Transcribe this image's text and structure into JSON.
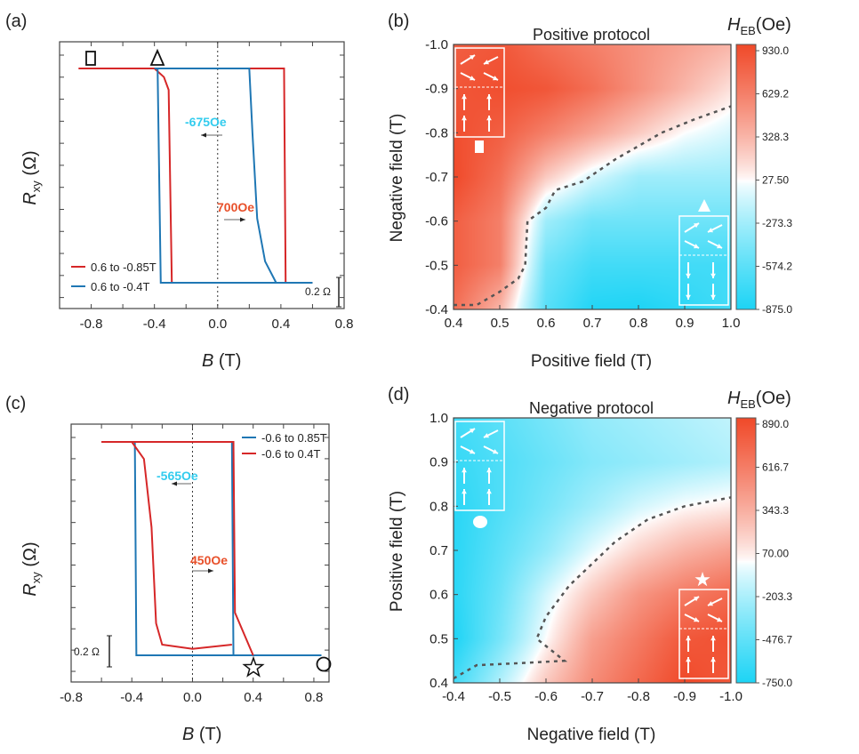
{
  "chart_data": [
    {
      "id": "a",
      "panel_label": "(a)",
      "type": "line",
      "xlabel": "B",
      "xunit": "(T)",
      "ylabel": "R",
      "ylabel_sub": "xy",
      "yunit": "(Ω)",
      "xlim": [
        -1.0,
        0.8
      ],
      "xticks": [
        "-0.8",
        "-0.4",
        "0.0",
        "0.4",
        "0.8"
      ],
      "xtick_values": [
        -0.8,
        -0.4,
        0,
        0.4,
        0.8
      ],
      "series": [
        {
          "name": "0.6 to -0.85T",
          "color": "#d62728",
          "segments": [
            [
              [
                -0.88,
                1
              ],
              [
                0.42,
                1
              ],
              [
                0.43,
                0
              ],
              [
                0.6,
                0
              ]
            ],
            [
              [
                -0.4,
                1
              ],
              [
                -0.34,
                0.96
              ],
              [
                -0.31,
                0.9
              ],
              [
                -0.29,
                0
              ],
              [
                0.6,
                0
              ]
            ]
          ]
        },
        {
          "name": "0.6 to -0.4T",
          "color": "#1f77b4",
          "segments": [
            [
              [
                -0.4,
                1
              ],
              [
                0.2,
                1
              ],
              [
                0.22,
                0.7
              ],
              [
                0.25,
                0.3
              ],
              [
                0.3,
                0.1
              ],
              [
                0.37,
                0
              ]
            ],
            [
              [
                -0.38,
                1
              ],
              [
                -0.36,
                0
              ],
              [
                0.6,
                0
              ]
            ]
          ]
        }
      ],
      "annotations": [
        {
          "text": "-675Oe",
          "color": "#33ccee"
        },
        {
          "text": "700Oe",
          "color": "#e8502a"
        }
      ],
      "scale_bar": "0.2 Ω",
      "markers": [
        "square",
        "triangle"
      ]
    },
    {
      "id": "b",
      "panel_label": "(b)",
      "type": "heatmap",
      "title": "Positive protocol",
      "xlabel": "Positive field (T)",
      "ylabel": "Negative field (T)",
      "xlim": [
        0.4,
        1.0
      ],
      "ylim": [
        -1.0,
        -0.4
      ],
      "xticks": [
        "0.4",
        "0.5",
        "0.6",
        "0.7",
        "0.8",
        "0.9",
        "1.0"
      ],
      "yticks": [
        "-1.0",
        "-0.9",
        "-0.8",
        "-0.7",
        "-0.6",
        "-0.5",
        "-0.4"
      ],
      "colorbar_title": "H",
      "colorbar_sub": "EB",
      "colorbar_unit": "(Oe)",
      "colorbar_ticks": [
        "930.0",
        "629.2",
        "328.3",
        "27.50",
        "-273.3",
        "-574.2",
        "-875.0"
      ],
      "zlim": [
        -875,
        930
      ],
      "grid": [
        [
          800,
          850,
          700,
          600,
          500,
          400,
          300
        ],
        [
          850,
          900,
          850,
          700,
          500,
          300,
          100
        ],
        [
          900,
          800,
          600,
          400,
          200,
          0,
          -100
        ],
        [
          930,
          700,
          200,
          -100,
          -300,
          -300,
          -300
        ],
        [
          800,
          600,
          -300,
          -500,
          -500,
          -500,
          -500
        ],
        [
          800,
          600,
          -500,
          -700,
          -700,
          -700,
          -700
        ],
        [
          700,
          300,
          -600,
          -850,
          -875,
          -800,
          -700
        ]
      ],
      "boundary": [
        [
          0.4,
          -0.41
        ],
        [
          0.45,
          -0.41
        ],
        [
          0.5,
          -0.44
        ],
        [
          0.54,
          -0.47
        ],
        [
          0.555,
          -0.5
        ],
        [
          0.56,
          -0.6
        ],
        [
          0.6,
          -0.63
        ],
        [
          0.62,
          -0.67
        ],
        [
          0.68,
          -0.69
        ],
        [
          0.75,
          -0.74
        ],
        [
          0.85,
          -0.8
        ],
        [
          0.92,
          -0.83
        ],
        [
          1.0,
          -0.86
        ]
      ]
    },
    {
      "id": "c",
      "panel_label": "(c)",
      "type": "line",
      "xlabel": "B",
      "xunit": "(T)",
      "ylabel": "R",
      "ylabel_sub": "xy",
      "yunit": "(Ω)",
      "xlim": [
        -0.8,
        0.9
      ],
      "xticks": [
        "-0.8",
        "-0.4",
        "0.0",
        "0.4",
        "0.8"
      ],
      "xtick_values": [
        -0.8,
        -0.4,
        0,
        0.4,
        0.8
      ],
      "series": [
        {
          "name": "-0.6 to 0.85T",
          "color": "#1f77b4",
          "segments": [
            [
              [
                -0.6,
                1
              ],
              [
                0.26,
                1
              ],
              [
                0.27,
                0
              ],
              [
                0.85,
                0
              ]
            ],
            [
              [
                -0.38,
                1
              ],
              [
                -0.37,
                0
              ],
              [
                0.85,
                0
              ]
            ]
          ]
        },
        {
          "name": "-0.6 to 0.4T",
          "color": "#d62728",
          "segments": [
            [
              [
                -0.6,
                1
              ],
              [
                -0.4,
                1
              ],
              [
                -0.32,
                0.92
              ],
              [
                -0.27,
                0.6
              ],
              [
                -0.24,
                0.15
              ],
              [
                -0.2,
                0.05
              ],
              [
                0,
                0.03
              ],
              [
                0.26,
                0.05
              ]
            ],
            [
              [
                -0.6,
                1
              ],
              [
                0.27,
                1
              ],
              [
                0.28,
                0.2
              ],
              [
                0.4,
                0
              ]
            ]
          ]
        }
      ],
      "annotations": [
        {
          "text": "-565Oe",
          "color": "#33ccee"
        },
        {
          "text": "450Oe",
          "color": "#e8502a"
        }
      ],
      "scale_bar": "0.2 Ω",
      "markers": [
        "star",
        "circle"
      ]
    },
    {
      "id": "d",
      "panel_label": "(d)",
      "type": "heatmap",
      "title": "Negative protocol",
      "xlabel": "Negative field (T)",
      "ylabel": "Positive field (T)",
      "xlim": [
        -0.4,
        -1.0
      ],
      "ylim": [
        1.0,
        0.4
      ],
      "xticks": [
        "-0.4",
        "-0.5",
        "-0.6",
        "-0.7",
        "-0.8",
        "-0.9",
        "-1.0"
      ],
      "yticks": [
        "1.0",
        "0.9",
        "0.8",
        "0.7",
        "0.6",
        "0.5",
        "0.4"
      ],
      "colorbar_title": "H",
      "colorbar_sub": "EB",
      "colorbar_unit": "(Oe)",
      "colorbar_ticks": [
        "890.0",
        "616.7",
        "343.3",
        "70.00",
        "-203.3",
        "-476.7",
        "-750.0"
      ],
      "zlim": [
        -750,
        890
      ],
      "grid": [
        [
          -600,
          -500,
          -400,
          -300,
          -250,
          -200,
          -150
        ],
        [
          -650,
          -550,
          -450,
          -350,
          -300,
          -250,
          -200
        ],
        [
          -700,
          -550,
          -400,
          -250,
          -100,
          0,
          50
        ],
        [
          -700,
          -500,
          -300,
          -50,
          150,
          300,
          400
        ],
        [
          -700,
          -450,
          -100,
          200,
          450,
          600,
          700
        ],
        [
          -750,
          -400,
          0,
          400,
          600,
          800,
          850
        ],
        [
          -600,
          -200,
          200,
          500,
          700,
          890,
          800
        ]
      ],
      "boundary": [
        [
          -0.4,
          0.41
        ],
        [
          -0.45,
          0.44
        ],
        [
          -0.55,
          0.445
        ],
        [
          -0.64,
          0.45
        ],
        [
          -0.58,
          0.5
        ],
        [
          -0.6,
          0.55
        ],
        [
          -0.65,
          0.62
        ],
        [
          -0.7,
          0.67
        ],
        [
          -0.75,
          0.72
        ],
        [
          -0.82,
          0.77
        ],
        [
          -0.9,
          0.8
        ],
        [
          -1.0,
          0.82
        ]
      ]
    }
  ],
  "colors": {
    "positive": "#f04a2a",
    "negative": "#1ed4f5",
    "zero": "#ffffff"
  }
}
